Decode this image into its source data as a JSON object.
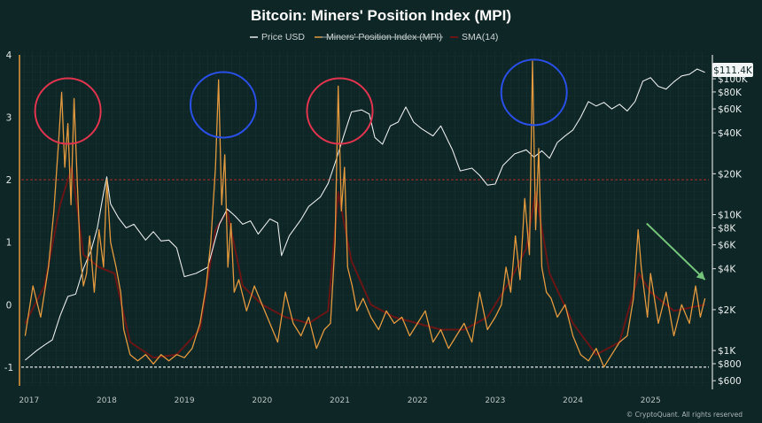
{
  "chart_data": {
    "type": "line",
    "title": "Bitcoin: Miners' Position Index (MPI)",
    "legend": [
      "Price USD",
      "Miners' Position Index (MPI)",
      "SMA(14)"
    ],
    "legend_placement": "top-center",
    "copyright": "© CryptoQuant. All rights reserved",
    "current_price_label": "$111.4K",
    "x_tick_labels": [
      "2017",
      "2018",
      "2019",
      "2020",
      "2021",
      "2022",
      "2023",
      "2024",
      "2025"
    ],
    "y_left_ticks": [
      "4",
      "3",
      "2",
      "1",
      "0",
      "-1"
    ],
    "y_left_range": [
      -1.3,
      4.0
    ],
    "y_right_ticks": [
      "$100K",
      "$80K",
      "$60K",
      "$40K",
      "$20K",
      "$10K",
      "$8K",
      "$6K",
      "$4K",
      "$2K",
      "$1K",
      "$800",
      "$600"
    ],
    "y_right_scale": "log",
    "y_right_range": [
      550,
      150000
    ],
    "threshold_lines": [
      {
        "value": 2,
        "style": "dashed",
        "color": "#8a2a2a"
      },
      {
        "value": -1,
        "style": "dashed",
        "color": "#cfd6d6"
      }
    ],
    "highlight_circles": [
      {
        "x": 2017.5,
        "y": 3.1,
        "color": "#e0344f"
      },
      {
        "x": 2019.5,
        "y": 3.2,
        "color": "#2a4fe6"
      },
      {
        "x": 2021.0,
        "y": 3.1,
        "color": "#e0344f"
      },
      {
        "x": 2023.5,
        "y": 3.4,
        "color": "#2a4fe6"
      }
    ],
    "arrow": {
      "from": [
        2024.95,
        1.3
      ],
      "to": [
        2025.7,
        0.4
      ],
      "color": "#74c47a"
    },
    "series": [
      {
        "name": "Price USD",
        "axis": "right",
        "color": "#e6eaea",
        "x": [
          2016.95,
          2017.1,
          2017.2,
          2017.3,
          2017.4,
          2017.5,
          2017.6,
          2017.7,
          2017.8,
          2017.88,
          2017.96,
          2018.0,
          2018.05,
          2018.15,
          2018.25,
          2018.35,
          2018.5,
          2018.6,
          2018.7,
          2018.8,
          2018.9,
          2019.0,
          2019.15,
          2019.3,
          2019.45,
          2019.55,
          2019.65,
          2019.75,
          2019.85,
          2019.95,
          2020.1,
          2020.2,
          2020.25,
          2020.35,
          2020.5,
          2020.6,
          2020.75,
          2020.85,
          2020.95,
          2021.05,
          2021.15,
          2021.28,
          2021.38,
          2021.45,
          2021.55,
          2021.65,
          2021.75,
          2021.85,
          2021.95,
          2022.05,
          2022.2,
          2022.3,
          2022.45,
          2022.55,
          2022.7,
          2022.8,
          2022.9,
          2023.0,
          2023.1,
          2023.25,
          2023.4,
          2023.5,
          2023.6,
          2023.7,
          2023.8,
          2023.9,
          2024.0,
          2024.1,
          2024.2,
          2024.3,
          2024.4,
          2024.5,
          2024.6,
          2024.7,
          2024.8,
          2024.9,
          2025.0,
          2025.1,
          2025.2,
          2025.3,
          2025.4,
          2025.5,
          2025.6,
          2025.7
        ],
        "values": [
          850,
          1000,
          1100,
          1200,
          1800,
          2500,
          2600,
          4000,
          5500,
          8000,
          14500,
          19000,
          12000,
          9500,
          8000,
          8500,
          6500,
          7500,
          6400,
          6500,
          5700,
          3500,
          3700,
          4100,
          8500,
          11000,
          9800,
          8500,
          9000,
          7200,
          9300,
          8700,
          5000,
          7000,
          9200,
          11500,
          13500,
          17000,
          25000,
          38000,
          57000,
          59000,
          55000,
          37000,
          33000,
          45000,
          48000,
          62000,
          48000,
          43000,
          38000,
          45000,
          30000,
          21000,
          22000,
          19500,
          16500,
          16800,
          23000,
          28000,
          30000,
          26500,
          29500,
          26000,
          34000,
          38000,
          42000,
          52000,
          68000,
          63000,
          67000,
          60000,
          65000,
          58000,
          68000,
          96000,
          102000,
          88000,
          84000,
          95000,
          105000,
          108000,
          118000,
          111400
        ]
      },
      {
        "name": "Miners' Position Index (MPI)",
        "axis": "left",
        "color": "#e39a3f",
        "x": [
          2016.95,
          2017.05,
          2017.15,
          2017.25,
          2017.32,
          2017.38,
          2017.42,
          2017.46,
          2017.5,
          2017.54,
          2017.58,
          2017.62,
          2017.66,
          2017.7,
          2017.74,
          2017.78,
          2017.84,
          2017.9,
          2017.96,
          2018.0,
          2018.05,
          2018.12,
          2018.18,
          2018.22,
          2018.3,
          2018.4,
          2018.5,
          2018.6,
          2018.7,
          2018.8,
          2018.9,
          2019.0,
          2019.1,
          2019.2,
          2019.28,
          2019.34,
          2019.4,
          2019.44,
          2019.48,
          2019.52,
          2019.56,
          2019.6,
          2019.64,
          2019.7,
          2019.8,
          2019.9,
          2020.0,
          2020.1,
          2020.2,
          2020.3,
          2020.4,
          2020.5,
          2020.6,
          2020.7,
          2020.8,
          2020.88,
          2020.94,
          2020.98,
          2021.02,
          2021.06,
          2021.1,
          2021.16,
          2021.22,
          2021.3,
          2021.4,
          2021.5,
          2021.6,
          2021.7,
          2021.8,
          2021.9,
          2022.0,
          2022.1,
          2022.2,
          2022.3,
          2022.4,
          2022.5,
          2022.6,
          2022.7,
          2022.8,
          2022.9,
          2023.0,
          2023.08,
          2023.14,
          2023.2,
          2023.26,
          2023.32,
          2023.38,
          2023.44,
          2023.48,
          2023.52,
          2023.56,
          2023.6,
          2023.66,
          2023.72,
          2023.8,
          2023.9,
          2024.0,
          2024.1,
          2024.2,
          2024.3,
          2024.4,
          2024.5,
          2024.6,
          2024.7,
          2024.78,
          2024.84,
          2024.88,
          2024.92,
          2024.96,
          2025.0,
          2025.1,
          2025.2,
          2025.3,
          2025.4,
          2025.5,
          2025.58,
          2025.64,
          2025.7
        ],
        "values": [
          -0.5,
          0.3,
          -0.2,
          0.6,
          1.5,
          2.6,
          3.4,
          2.2,
          2.9,
          1.6,
          3.3,
          2.0,
          0.8,
          0.3,
          0.5,
          1.1,
          0.2,
          1.2,
          0.6,
          2.0,
          1.0,
          0.6,
          0.2,
          -0.4,
          -0.8,
          -0.9,
          -0.8,
          -0.95,
          -0.8,
          -0.9,
          -0.8,
          -0.85,
          -0.7,
          -0.3,
          0.3,
          1.0,
          2.2,
          3.6,
          1.6,
          2.4,
          0.6,
          1.3,
          0.2,
          0.4,
          -0.1,
          0.3,
          0.0,
          -0.3,
          -0.6,
          0.2,
          -0.3,
          -0.5,
          -0.2,
          -0.7,
          -0.4,
          -0.3,
          1.0,
          3.5,
          1.5,
          2.2,
          0.6,
          0.3,
          -0.1,
          0.1,
          -0.2,
          -0.4,
          -0.1,
          -0.3,
          -0.2,
          -0.5,
          -0.3,
          -0.1,
          -0.6,
          -0.4,
          -0.7,
          -0.5,
          -0.3,
          -0.6,
          0.2,
          -0.4,
          -0.2,
          0.0,
          0.6,
          0.2,
          1.1,
          0.4,
          1.7,
          0.8,
          3.9,
          1.2,
          2.5,
          0.6,
          0.2,
          0.1,
          -0.2,
          0.0,
          -0.5,
          -0.8,
          -0.9,
          -0.7,
          -1.0,
          -0.8,
          -0.6,
          -0.5,
          0.1,
          1.2,
          0.6,
          0.2,
          -0.2,
          0.5,
          -0.3,
          0.2,
          -0.5,
          0.0,
          -0.3,
          0.3,
          -0.2,
          0.1
        ]
      },
      {
        "name": "SMA(14)",
        "axis": "left",
        "color": "#6a1515",
        "x": [
          2016.95,
          2017.2,
          2017.4,
          2017.55,
          2017.7,
          2017.9,
          2018.1,
          2018.3,
          2018.6,
          2018.9,
          2019.2,
          2019.4,
          2019.55,
          2019.75,
          2020.0,
          2020.3,
          2020.6,
          2020.85,
          2020.98,
          2021.15,
          2021.4,
          2021.7,
          2022.0,
          2022.3,
          2022.6,
          2022.9,
          2023.2,
          2023.4,
          2023.52,
          2023.7,
          2024.0,
          2024.3,
          2024.6,
          2024.85,
          2025.0,
          2025.3,
          2025.7
        ],
        "values": [
          -0.3,
          0.3,
          1.6,
          2.2,
          0.8,
          0.6,
          0.5,
          -0.6,
          -0.85,
          -0.8,
          -0.4,
          1.2,
          1.5,
          0.3,
          0.0,
          -0.2,
          -0.3,
          -0.1,
          1.8,
          0.7,
          0.0,
          -0.2,
          -0.3,
          -0.4,
          -0.4,
          -0.2,
          0.4,
          0.9,
          1.8,
          0.5,
          -0.3,
          -0.8,
          -0.6,
          0.5,
          0.2,
          -0.1,
          0.0
        ]
      }
    ]
  }
}
